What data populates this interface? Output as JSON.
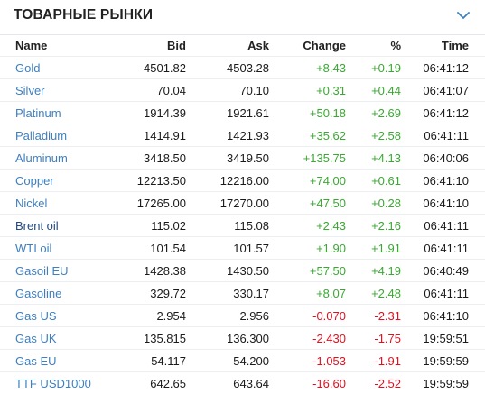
{
  "header": {
    "title": "ТОВАРНЫЕ РЫНКИ",
    "collapse_icon": "chevron-down-icon"
  },
  "columns": {
    "name": "Name",
    "bid": "Bid",
    "ask": "Ask",
    "change": "Change",
    "pct": "%",
    "time": "Time"
  },
  "rows": [
    {
      "name": "Gold",
      "bid": "4501.82",
      "ask": "4503.28",
      "change": "+8.43",
      "pct": "+0.19",
      "time": "06:41:12",
      "direction": "up"
    },
    {
      "name": "Silver",
      "bid": "70.04",
      "ask": "70.10",
      "change": "+0.31",
      "pct": "+0.44",
      "time": "06:41:07",
      "direction": "up"
    },
    {
      "name": "Platinum",
      "bid": "1914.39",
      "ask": "1921.61",
      "change": "+50.18",
      "pct": "+2.69",
      "time": "06:41:12",
      "direction": "up"
    },
    {
      "name": "Palladium",
      "bid": "1414.91",
      "ask": "1421.93",
      "change": "+35.62",
      "pct": "+2.58",
      "time": "06:41:11",
      "direction": "up"
    },
    {
      "name": "Aluminum",
      "bid": "3418.50",
      "ask": "3419.50",
      "change": "+135.75",
      "pct": "+4.13",
      "time": "06:40:06",
      "direction": "up"
    },
    {
      "name": "Copper",
      "bid": "12213.50",
      "ask": "12216.00",
      "change": "+74.00",
      "pct": "+0.61",
      "time": "06:41:10",
      "direction": "up"
    },
    {
      "name": "Nickel",
      "bid": "17265.00",
      "ask": "17270.00",
      "change": "+47.50",
      "pct": "+0.28",
      "time": "06:41:10",
      "direction": "up"
    },
    {
      "name": "Brent oil",
      "bid": "115.02",
      "ask": "115.08",
      "change": "+2.43",
      "pct": "+2.16",
      "time": "06:41:11",
      "direction": "up"
    },
    {
      "name": "WTI oil",
      "bid": "101.54",
      "ask": "101.57",
      "change": "+1.90",
      "pct": "+1.91",
      "time": "06:41:11",
      "direction": "up"
    },
    {
      "name": "Gasoil EU",
      "bid": "1428.38",
      "ask": "1430.50",
      "change": "+57.50",
      "pct": "+4.19",
      "time": "06:40:49",
      "direction": "up"
    },
    {
      "name": "Gasoline",
      "bid": "329.72",
      "ask": "330.17",
      "change": "+8.07",
      "pct": "+2.48",
      "time": "06:41:11",
      "direction": "up"
    },
    {
      "name": "Gas US",
      "bid": "2.954",
      "ask": "2.956",
      "change": "-0.070",
      "pct": "-2.31",
      "time": "06:41:10",
      "direction": "down"
    },
    {
      "name": "Gas UK",
      "bid": "135.815",
      "ask": "136.300",
      "change": "-2.430",
      "pct": "-1.75",
      "time": "19:59:51",
      "direction": "down"
    },
    {
      "name": "Gas EU",
      "bid": "54.117",
      "ask": "54.200",
      "change": "-1.053",
      "pct": "-1.91",
      "time": "19:59:59",
      "direction": "down"
    },
    {
      "name": "TTF USD1000",
      "bid": "642.65",
      "ask": "643.64",
      "change": "-16.60",
      "pct": "-2.52",
      "time": "19:59:59",
      "direction": "down"
    }
  ],
  "colors": {
    "up": "#3aa832",
    "down": "#e0101f",
    "link": "#3f7fbf",
    "link_dark": "#23497e"
  }
}
